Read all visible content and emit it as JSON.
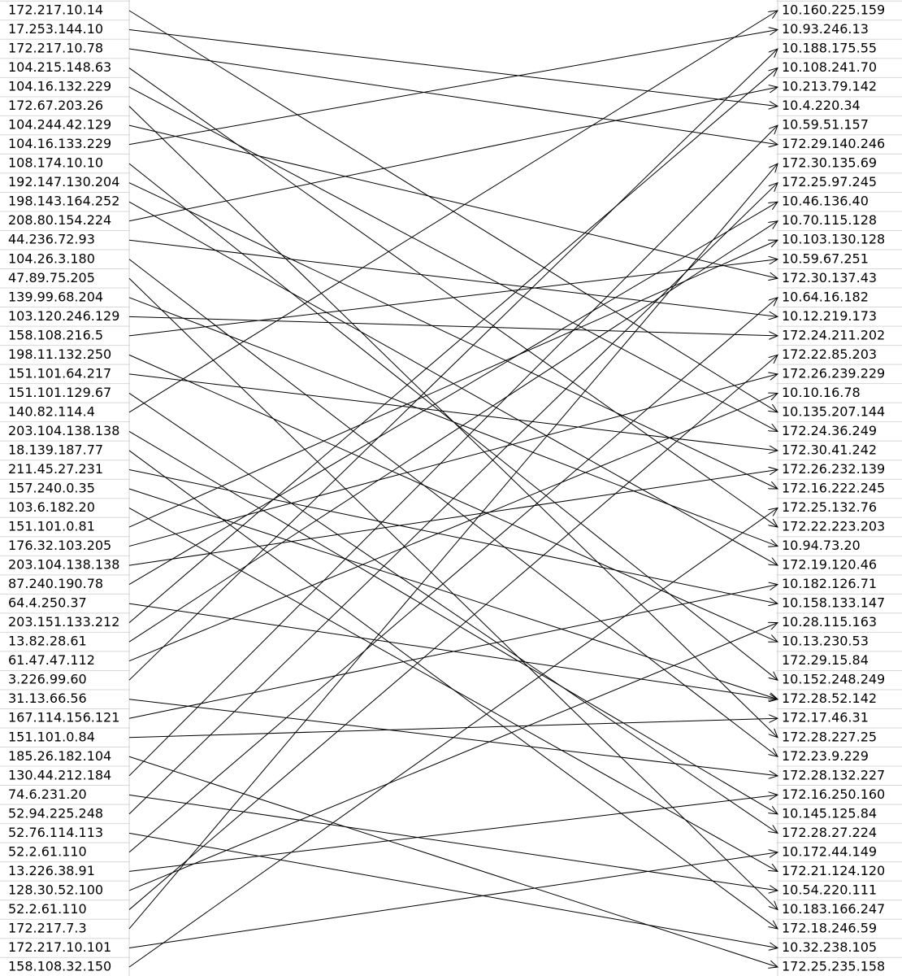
{
  "left_ips": [
    "172.217.10.14",
    "17.253.144.10",
    "172.217.10.78",
    "104.215.148.63",
    "104.16.132.229",
    "172.67.203.26",
    "104.244.42.129",
    "104.16.133.229",
    "108.174.10.10",
    "192.147.130.204",
    "198.143.164.252",
    "208.80.154.224",
    "44.236.72.93",
    "104.26.3.180",
    "47.89.75.205",
    "139.99.68.204",
    "103.120.246.129",
    "158.108.216.5",
    "198.11.132.250",
    "151.101.64.217",
    "151.101.129.67",
    "140.82.114.4",
    "203.104.138.138",
    "18.139.187.77",
    "211.45.27.231",
    "157.240.0.35",
    "103.6.182.20",
    "151.101.0.81",
    "176.32.103.205",
    "203.104.138.138",
    "87.240.190.78",
    "64.4.250.37",
    "203.151.133.212",
    "13.82.28.61",
    "61.47.47.112",
    "3.226.99.60",
    "31.13.66.56",
    "167.114.156.121",
    "151.101.0.84",
    "185.26.182.104",
    "130.44.212.184",
    "74.6.231.20",
    "52.94.225.248",
    "52.76.114.113",
    "52.2.61.110",
    "13.226.38.91",
    "128.30.52.100",
    "52.2.61.110",
    "172.217.7.3",
    "172.217.10.101",
    "158.108.32.150"
  ],
  "right_ips": [
    "10.160.225.159",
    "10.93.246.13",
    "10.188.175.55",
    "10.108.241.70",
    "10.213.79.142",
    "10.4.220.34",
    "10.59.51.157",
    "172.29.140.246",
    "172.30.135.69",
    "172.25.97.245",
    "10.46.136.40",
    "10.70.115.128",
    "10.103.130.128",
    "10.59.67.251",
    "172.30.137.43",
    "10.64.16.182",
    "10.12.219.173",
    "172.24.211.202",
    "172.22.85.203",
    "172.26.239.229",
    "10.10.16.78",
    "10.135.207.144",
    "172.24.36.249",
    "172.30.41.242",
    "172.26.232.139",
    "172.16.222.245",
    "172.25.132.76",
    "172.22.223.203",
    "10.94.73.20",
    "172.19.120.46",
    "10.182.126.71",
    "10.158.133.147",
    "10.28.115.163",
    "10.13.230.53",
    "172.29.15.84",
    "10.152.248.249",
    "172.28.52.142",
    "172.17.46.31",
    "172.28.227.25",
    "172.23.9.229",
    "172.28.132.227",
    "172.16.250.160",
    "10.145.125.84",
    "172.28.27.224",
    "10.172.44.149",
    "172.21.124.120",
    "10.54.220.111",
    "10.183.166.247",
    "172.18.246.59",
    "10.32.238.105",
    "172.25.235.158"
  ],
  "connections": [
    [
      0,
      21
    ],
    [
      1,
      5
    ],
    [
      2,
      7
    ],
    [
      3,
      27
    ],
    [
      4,
      22
    ],
    [
      5,
      38
    ],
    [
      6,
      14
    ],
    [
      7,
      1
    ],
    [
      8,
      35
    ],
    [
      9,
      25
    ],
    [
      10,
      29
    ],
    [
      11,
      4
    ],
    [
      12,
      16
    ],
    [
      13,
      39
    ],
    [
      14,
      47
    ],
    [
      15,
      28
    ],
    [
      16,
      17
    ],
    [
      17,
      13
    ],
    [
      18,
      33
    ],
    [
      19,
      23
    ],
    [
      20,
      43
    ],
    [
      21,
      0
    ],
    [
      22,
      42
    ],
    [
      23,
      48
    ],
    [
      24,
      31
    ],
    [
      25,
      36
    ],
    [
      26,
      45
    ],
    [
      27,
      12
    ],
    [
      28,
      19
    ],
    [
      29,
      24
    ],
    [
      30,
      10
    ],
    [
      31,
      36
    ],
    [
      32,
      3
    ],
    [
      33,
      11
    ],
    [
      34,
      20
    ],
    [
      35,
      2
    ],
    [
      36,
      40
    ],
    [
      37,
      30
    ],
    [
      38,
      37
    ],
    [
      39,
      50
    ],
    [
      40,
      6
    ],
    [
      41,
      46
    ],
    [
      42,
      9
    ],
    [
      43,
      49
    ],
    [
      44,
      15
    ],
    [
      45,
      41
    ],
    [
      46,
      32
    ],
    [
      47,
      18
    ],
    [
      48,
      8
    ],
    [
      49,
      44
    ],
    [
      50,
      26
    ]
  ]
}
